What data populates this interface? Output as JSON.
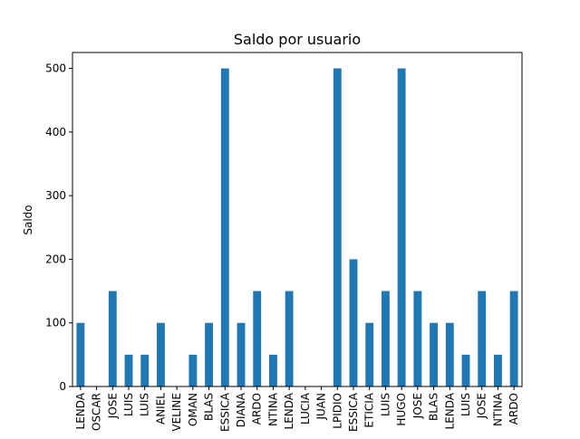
{
  "chart_data": {
    "type": "bar",
    "title": "Saldo por usuario",
    "xlabel": "",
    "ylabel": "Saldo",
    "ylim": [
      0,
      525
    ],
    "yticks": [
      0,
      100,
      200,
      300,
      400,
      500
    ],
    "grid": false,
    "legend": "none",
    "bar_color": "#1f77b4",
    "categories": [
      "LENDA",
      "OSCAR",
      "JOSE",
      "LUIS",
      "LUIS",
      "ANIEL",
      "VELINE",
      "OMAN",
      "BLAS",
      "ESSICA",
      "DIANA",
      "ARDO",
      "NTINA",
      "LENDA",
      "LUCIA",
      "JUAN",
      "LPIDIO",
      "ESSICA",
      "ETICIA",
      "LUIS",
      "HUGO",
      "JOSE",
      "BLAS",
      "LENDA",
      "LUIS",
      "JOSE",
      "NTINA",
      "ARDO"
    ],
    "values": [
      100,
      0,
      150,
      50,
      50,
      100,
      0,
      50,
      100,
      500,
      100,
      150,
      50,
      150,
      0,
      0,
      500,
      200,
      100,
      150,
      500,
      150,
      100,
      100,
      50,
      150,
      50,
      150
    ]
  }
}
